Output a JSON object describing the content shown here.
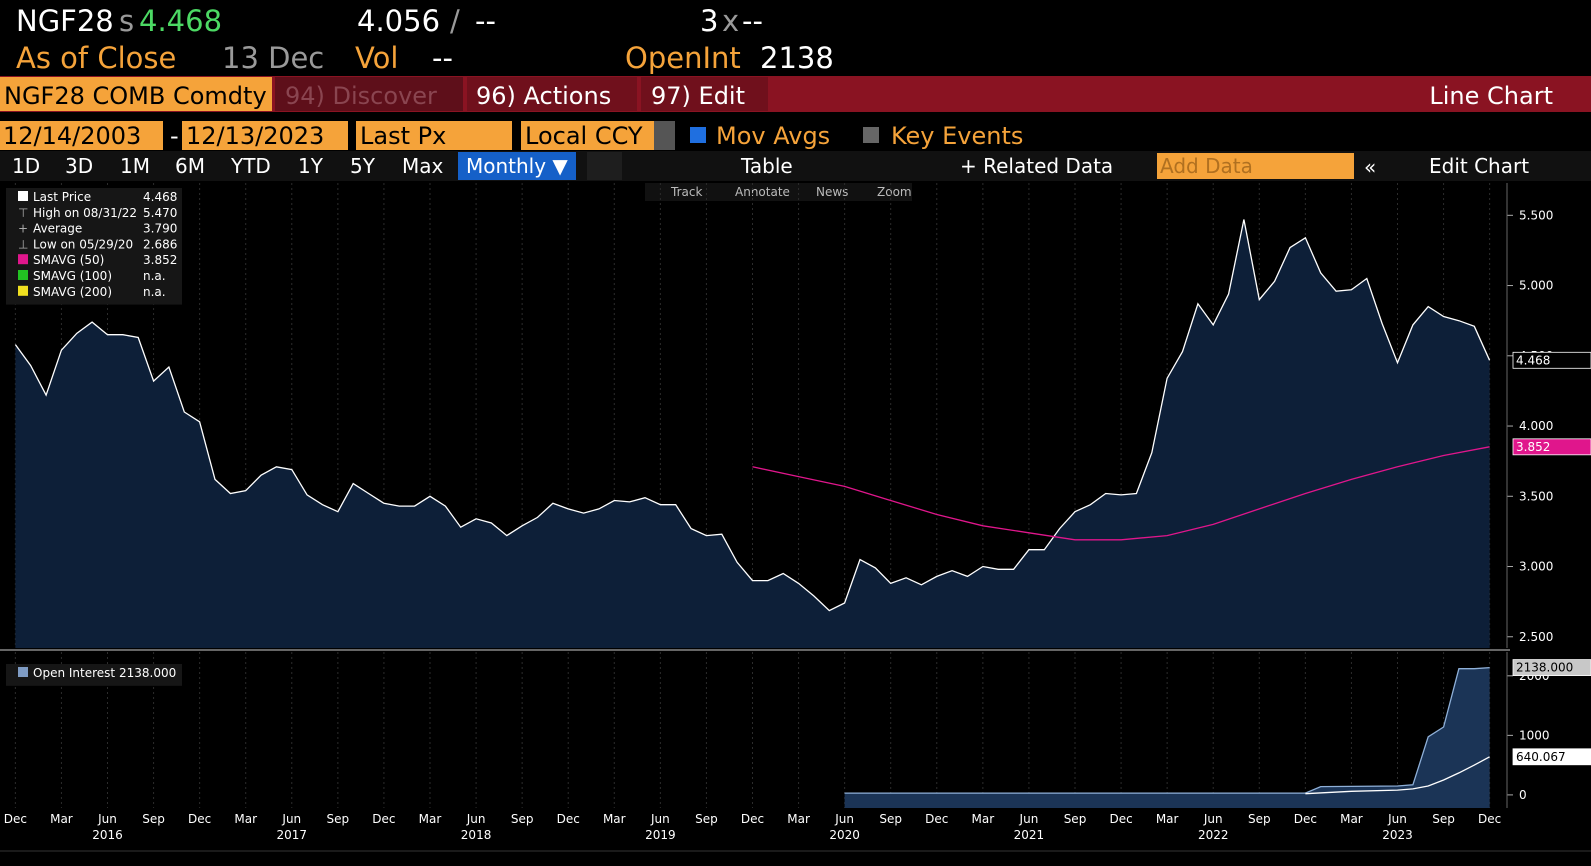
{
  "header": {
    "ticker": "NGF28",
    "source": "s",
    "last": "4.468",
    "bid": "4.056",
    "slash": "/",
    "ask": "--",
    "size": "3",
    "x": "x",
    "ask_size": "--",
    "as_of": "As of Close",
    "date": "13 Dec",
    "vol_label": "Vol",
    "vol": "--",
    "oi_label": "OpenInt",
    "oi": "2138"
  },
  "toolbar": {
    "security": "NGF28 COMB Comdty",
    "discover": "94) Discover",
    "actions": "96) Actions",
    "edit": "97) Edit",
    "title": "Line Chart"
  },
  "controls": {
    "start_date": "12/14/2003",
    "dash": "-",
    "end_date": "12/13/2023",
    "field": "Last Px",
    "currency": "Local CCY",
    "mov_avgs": "Mov Avgs",
    "key_events": "Key Events"
  },
  "ranges": [
    "1D",
    "3D",
    "1M",
    "6M",
    "YTD",
    "1Y",
    "5Y",
    "Max"
  ],
  "buttons": {
    "period": "Monthly ▼",
    "table": "Table",
    "related": "+ Related Data",
    "add_data": "Add Data",
    "collapse": "«",
    "edit_chart": "Edit Chart"
  },
  "tools": [
    "Track",
    "Annotate",
    "News",
    "Zoom"
  ],
  "chart_data": [
    {
      "type": "area",
      "grid": "x",
      "xlim": [
        "2015-11",
        "2024-01"
      ],
      "ylim": [
        2.42,
        5.73
      ],
      "yticks": [
        {
          "value": 2.5,
          "label": "2.500"
        },
        {
          "value": 3,
          "label": "3.000"
        },
        {
          "value": 3.5,
          "label": "3.500"
        },
        {
          "value": 4,
          "label": "4.000"
        },
        {
          "value": 4.5,
          "label": "4.500"
        },
        {
          "value": 5,
          "label": "5.000"
        },
        {
          "value": 5.5,
          "label": "5.500"
        }
      ],
      "legend": [
        {
          "label": "Last Price",
          "value": "4.468",
          "color": "#ffffff"
        },
        {
          "label": "High on 08/31/22",
          "value": "5.470",
          "icon": "⊤"
        },
        {
          "label": "Average",
          "value": "3.790",
          "icon": "+"
        },
        {
          "label": "Low on 05/29/20",
          "value": "2.686",
          "icon": "⊥"
        },
        {
          "label": "SMAVG (50)",
          "value": "3.852",
          "color": "#e0168c"
        },
        {
          "label": "SMAVG (100)",
          "value": "n.a.",
          "color": "#22c322"
        },
        {
          "label": "SMAVG (200)",
          "value": "n.a.",
          "color": "#f0e020"
        }
      ],
      "series": [
        {
          "name": "Last Price",
          "color": "#ffffff",
          "fill": "#0d1f38",
          "tag_color": "#000000",
          "tag_text": "#ffffff",
          "x": [
            "2015-12",
            "2016-01",
            "2016-02",
            "2016-03",
            "2016-04",
            "2016-05",
            "2016-06",
            "2016-07",
            "2016-08",
            "2016-09",
            "2016-10",
            "2016-11",
            "2016-12",
            "2017-01",
            "2017-02",
            "2017-03",
            "2017-04",
            "2017-05",
            "2017-06",
            "2017-07",
            "2017-08",
            "2017-09",
            "2017-10",
            "2017-11",
            "2017-12",
            "2018-01",
            "2018-02",
            "2018-03",
            "2018-04",
            "2018-05",
            "2018-06",
            "2018-07",
            "2018-08",
            "2018-09",
            "2018-10",
            "2018-11",
            "2018-12",
            "2019-01",
            "2019-02",
            "2019-03",
            "2019-04",
            "2019-05",
            "2019-06",
            "2019-07",
            "2019-08",
            "2019-09",
            "2019-10",
            "2019-11",
            "2019-12",
            "2020-01",
            "2020-02",
            "2020-03",
            "2020-04",
            "2020-05",
            "2020-06",
            "2020-07",
            "2020-08",
            "2020-09",
            "2020-10",
            "2020-11",
            "2020-12",
            "2021-01",
            "2021-02",
            "2021-03",
            "2021-04",
            "2021-05",
            "2021-06",
            "2021-07",
            "2021-08",
            "2021-09",
            "2021-10",
            "2021-11",
            "2021-12",
            "2022-01",
            "2022-02",
            "2022-03",
            "2022-04",
            "2022-05",
            "2022-06",
            "2022-07",
            "2022-08",
            "2022-09",
            "2022-10",
            "2022-11",
            "2022-12",
            "2023-01",
            "2023-02",
            "2023-03",
            "2023-04",
            "2023-05",
            "2023-06",
            "2023-07",
            "2023-08",
            "2023-09",
            "2023-10",
            "2023-11",
            "2023-12"
          ],
          "values": [
            4.58,
            4.43,
            4.22,
            4.54,
            4.66,
            4.74,
            4.65,
            4.65,
            4.63,
            4.32,
            4.42,
            4.1,
            4.03,
            3.62,
            3.52,
            3.54,
            3.65,
            3.71,
            3.69,
            3.51,
            3.44,
            3.39,
            3.59,
            3.52,
            3.45,
            3.43,
            3.43,
            3.5,
            3.43,
            3.28,
            3.34,
            3.31,
            3.22,
            3.29,
            3.35,
            3.45,
            3.41,
            3.38,
            3.41,
            3.47,
            3.46,
            3.49,
            3.44,
            3.44,
            3.27,
            3.22,
            3.23,
            3.03,
            2.9,
            2.9,
            2.95,
            2.88,
            2.79,
            2.686,
            2.74,
            3.05,
            2.99,
            2.88,
            2.92,
            2.87,
            2.93,
            2.97,
            2.93,
            3.0,
            2.98,
            2.98,
            3.12,
            3.12,
            3.27,
            3.39,
            3.44,
            3.52,
            3.51,
            3.52,
            3.81,
            4.34,
            4.53,
            4.87,
            4.72,
            4.94,
            5.47,
            4.9,
            5.03,
            5.27,
            5.34,
            5.09,
            4.96,
            4.97,
            5.05,
            4.73,
            4.45,
            4.72,
            4.85,
            4.78,
            4.75,
            4.71,
            4.468
          ]
        },
        {
          "name": "SMAVG (50)",
          "color": "#e0168c",
          "tag_color": "#e0168c",
          "tag_text": "#ffffff",
          "x": [
            "2019-12",
            "2020-03",
            "2020-06",
            "2020-09",
            "2020-12",
            "2021-03",
            "2021-06",
            "2021-09",
            "2021-12",
            "2022-03",
            "2022-06",
            "2022-09",
            "2022-12",
            "2023-03",
            "2023-06",
            "2023-09",
            "2023-12"
          ],
          "values": [
            3.71,
            3.64,
            3.57,
            3.47,
            3.37,
            3.29,
            3.24,
            3.19,
            3.19,
            3.22,
            3.3,
            3.41,
            3.52,
            3.62,
            3.71,
            3.79,
            3.852
          ]
        }
      ]
    },
    {
      "type": "area",
      "grid": "x",
      "xlim": [
        "2015-11",
        "2024-01"
      ],
      "ylim": [
        -220,
        2400
      ],
      "yticks": [
        0,
        1000,
        2000
      ],
      "legend": [
        {
          "label": "Open Interest",
          "value": "2138.000",
          "color": "#7f9cc4"
        }
      ],
      "xticks": [
        {
          "value": "2015-12",
          "label": "Dec"
        },
        {
          "value": "2016-03",
          "label": "Mar"
        },
        {
          "value": "2016-06",
          "label": "Jun"
        },
        {
          "value": "2016-09",
          "label": "Sep"
        },
        {
          "value": "2016-12",
          "label": "Dec"
        },
        {
          "value": "2017-03",
          "label": "Mar"
        },
        {
          "value": "2017-06",
          "label": "Jun"
        },
        {
          "value": "2017-09",
          "label": "Sep"
        },
        {
          "value": "2017-12",
          "label": "Dec"
        },
        {
          "value": "2018-03",
          "label": "Mar"
        },
        {
          "value": "2018-06",
          "label": "Jun"
        },
        {
          "value": "2018-09",
          "label": "Sep"
        },
        {
          "value": "2018-12",
          "label": "Dec"
        },
        {
          "value": "2019-03",
          "label": "Mar"
        },
        {
          "value": "2019-06",
          "label": "Jun"
        },
        {
          "value": "2019-09",
          "label": "Sep"
        },
        {
          "value": "2019-12",
          "label": "Dec"
        },
        {
          "value": "2020-03",
          "label": "Mar"
        },
        {
          "value": "2020-06",
          "label": "Jun"
        },
        {
          "value": "2020-09",
          "label": "Sep"
        },
        {
          "value": "2020-12",
          "label": "Dec"
        },
        {
          "value": "2021-03",
          "label": "Mar"
        },
        {
          "value": "2021-06",
          "label": "Jun"
        },
        {
          "value": "2021-09",
          "label": "Sep"
        },
        {
          "value": "2021-12",
          "label": "Dec"
        },
        {
          "value": "2022-03",
          "label": "Mar"
        },
        {
          "value": "2022-06",
          "label": "Jun"
        },
        {
          "value": "2022-09",
          "label": "Sep"
        },
        {
          "value": "2022-12",
          "label": "Dec"
        },
        {
          "value": "2023-03",
          "label": "Mar"
        },
        {
          "value": "2023-06",
          "label": "Jun"
        },
        {
          "value": "2023-09",
          "label": "Sep"
        },
        {
          "value": "2023-12",
          "label": "Dec"
        }
      ],
      "year_labels": [
        {
          "value": "2016-06",
          "label": "2016"
        },
        {
          "value": "2017-06",
          "label": "2017"
        },
        {
          "value": "2018-06",
          "label": "2018"
        },
        {
          "value": "2019-06",
          "label": "2019"
        },
        {
          "value": "2020-06",
          "label": "2020"
        },
        {
          "value": "2021-06",
          "label": "2021"
        },
        {
          "value": "2022-06",
          "label": "2022"
        },
        {
          "value": "2023-06",
          "label": "2023"
        }
      ],
      "series": [
        {
          "name": "Open Interest",
          "color": "#8fb0d8",
          "fill": "#1b3456",
          "tag_color": "#c8c8c8",
          "tag_text": "#000000",
          "end_label": "2138.000",
          "x": [
            "2020-06",
            "2022-12",
            "2023-01",
            "2023-06",
            "2023-07",
            "2023-08",
            "2023-09",
            "2023-10",
            "2023-11",
            "2023-12"
          ],
          "values": [
            30,
            30,
            140,
            150,
            170,
            975,
            1140,
            2120,
            2120,
            2138
          ]
        },
        {
          "color": "#ffffff",
          "tag_color": "#ffffff",
          "tag_text": "#000000",
          "end_label": "640.067",
          "x": [
            "2022-12",
            "2023-03",
            "2023-06",
            "2023-07",
            "2023-08",
            "2023-09",
            "2023-10",
            "2023-11",
            "2023-12"
          ],
          "values": [
            20,
            60,
            80,
            100,
            150,
            250,
            370,
            500,
            640.067
          ]
        }
      ]
    }
  ]
}
